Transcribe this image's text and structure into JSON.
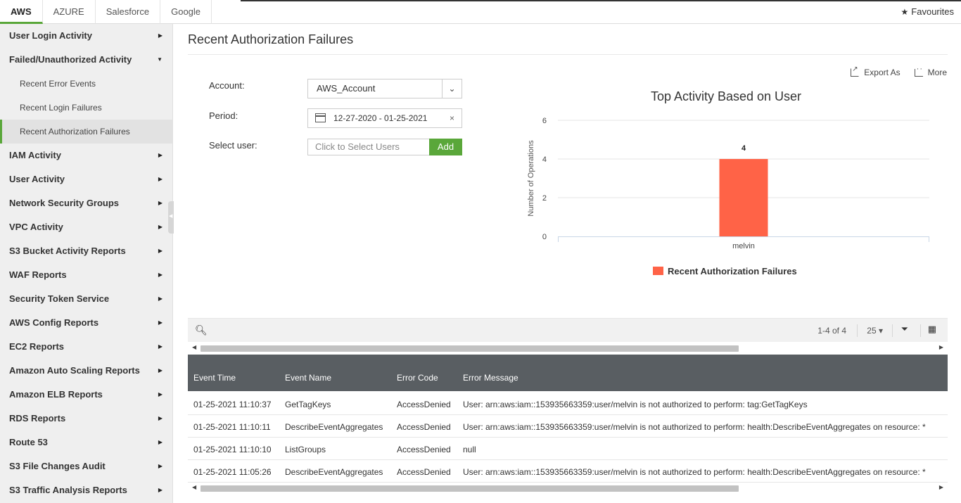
{
  "tabs": [
    {
      "label": "AWS"
    },
    {
      "label": "AZURE"
    },
    {
      "label": "Salesforce"
    },
    {
      "label": "Google"
    }
  ],
  "favourites_label": "Favourites",
  "sidebar": {
    "items": [
      {
        "label": "User Login Activity"
      },
      {
        "label": "Failed/Unauthorized Activity"
      },
      {
        "label": "Recent Error Events"
      },
      {
        "label": "Recent Login Failures"
      },
      {
        "label": "Recent Authorization Failures"
      },
      {
        "label": "IAM Activity"
      },
      {
        "label": "User Activity"
      },
      {
        "label": "Network Security Groups"
      },
      {
        "label": "VPC Activity"
      },
      {
        "label": "S3 Bucket Activity Reports"
      },
      {
        "label": "WAF Reports"
      },
      {
        "label": "Security Token Service"
      },
      {
        "label": "AWS Config Reports"
      },
      {
        "label": "EC2 Reports"
      },
      {
        "label": "Amazon Auto Scaling Reports"
      },
      {
        "label": "Amazon ELB Reports"
      },
      {
        "label": "RDS Reports"
      },
      {
        "label": "Route 53"
      },
      {
        "label": "S3 File Changes Audit"
      },
      {
        "label": "S3 Traffic Analysis Reports"
      }
    ]
  },
  "page": {
    "title": "Recent Authorization Failures"
  },
  "form": {
    "account_label": "Account:",
    "account_value": "AWS_Account",
    "period_label": "Period:",
    "period_value": "12-27-2020 - 01-25-2021",
    "user_label": "Select user:",
    "user_placeholder": "Click to Select Users",
    "add_label": "Add"
  },
  "chart_actions": {
    "export_label": "Export As",
    "more_label": "More"
  },
  "chart_data": {
    "type": "bar",
    "title": "Top Activity Based on User",
    "categories": [
      "melvin"
    ],
    "series": [
      {
        "name": "Recent Authorization Failures",
        "values": [
          4
        ]
      }
    ],
    "xlabel": "",
    "ylabel": "Number of Operations",
    "ylim": [
      0,
      6
    ],
    "yticks": [
      0,
      2,
      4,
      6
    ],
    "data_labels": [
      "4"
    ],
    "grid": true,
    "legend": "bottom-center",
    "bar_color": "#ff6347"
  },
  "table": {
    "pager_text": "1-4 of 4",
    "per_page": "25",
    "columns": [
      "Event Time",
      "Event Name",
      "Error Code",
      "Error Message"
    ],
    "rows": [
      [
        "01-25-2021 11:10:37",
        "GetTagKeys",
        "AccessDenied",
        "User: arn:aws:iam::153935663359:user/melvin is not authorized to perform: tag:GetTagKeys"
      ],
      [
        "01-25-2021 11:10:11",
        "DescribeEventAggregates",
        "AccessDenied",
        "User: arn:aws:iam::153935663359:user/melvin is not authorized to perform: health:DescribeEventAggregates on resource: *"
      ],
      [
        "01-25-2021 11:10:10",
        "ListGroups",
        "AccessDenied",
        "null"
      ],
      [
        "01-25-2021 11:05:26",
        "DescribeEventAggregates",
        "AccessDenied",
        "User: arn:aws:iam::153935663359:user/melvin is not authorized to perform: health:DescribeEventAggregates on resource: *"
      ]
    ]
  },
  "colors": {
    "accent": "#5aa73a",
    "table_header": "#595e62",
    "bar": "#ff6347"
  }
}
